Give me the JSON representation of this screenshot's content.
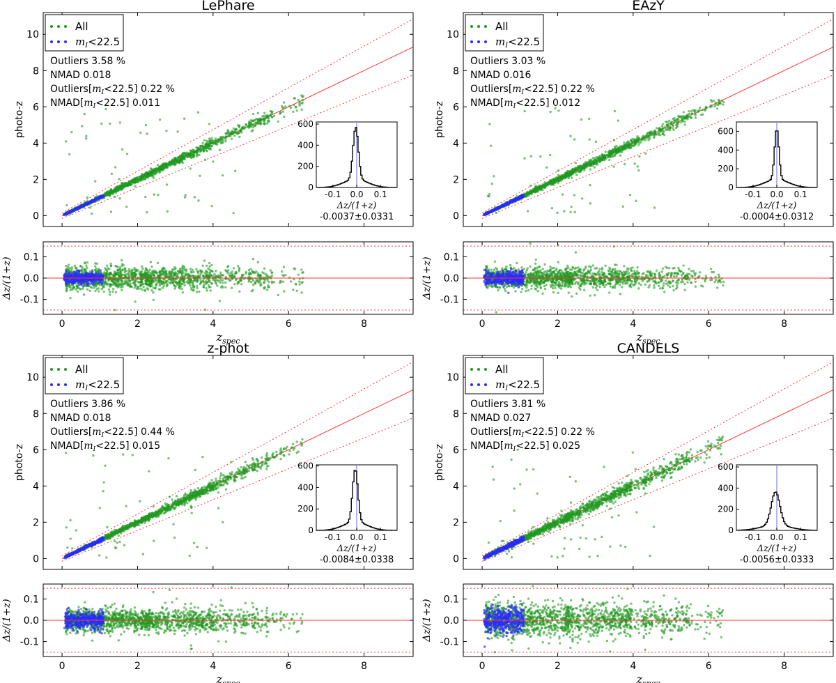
{
  "colors": {
    "all": "#1f9a1f",
    "bright": "#2b2bff",
    "line": "#ff3030",
    "hist": "#000000",
    "zero_line": "#9a9af0"
  },
  "common": {
    "legend_all": "All",
    "legend_bright_prefix": "m",
    "legend_bright_sub": "I",
    "legend_bright_suffix": "<22.5",
    "ylabel_main": "photo-z",
    "ylabel_resid": "Δz/(1+z)",
    "xlabel_main": "z",
    "xlabel_sub": "spec",
    "hist_xlabel": "Δz/(1+z)",
    "stat_outliers_label": "Outliers",
    "stat_nmad_label": "NMAD",
    "stat_mI_prefix": "m",
    "stat_mI_sub": "I",
    "stat_mI_cut": "<22.5",
    "percent": "%"
  },
  "chart_data": [
    {
      "type": "scatter",
      "title": "LePhare",
      "xlim": [
        -0.5,
        9.3
      ],
      "ylim": [
        -0.6,
        11.2
      ],
      "xticks": [
        "0",
        "2",
        "4",
        "6",
        "8"
      ],
      "yticks": [
        "0",
        "2",
        "4",
        "6",
        "8",
        "10"
      ],
      "resid_ylim": [
        -0.17,
        0.17
      ],
      "resid_yticks": [
        "0.1",
        "0.0",
        "-0.1"
      ],
      "outlier_threshold": 0.15,
      "stats": {
        "outliers": "3.58",
        "nmad": "0.018",
        "outliers_bright": "0.22",
        "nmad_bright": "0.011"
      },
      "hist": {
        "xlim": [
          -0.17,
          0.17
        ],
        "ylim": [
          0,
          620
        ],
        "yticks": [
          "0",
          "200",
          "400",
          "600"
        ],
        "xticks": [
          "-0.1",
          "0.0",
          "0.1"
        ],
        "peak": 580,
        "center": -0.004,
        "width": 0.011,
        "tail": 0.05,
        "summary": "-0.0037±0.0331"
      }
    },
    {
      "type": "scatter",
      "title": "EAzY",
      "xlim": [
        -0.5,
        9.3
      ],
      "ylim": [
        -0.6,
        11.2
      ],
      "xticks": [
        "0",
        "2",
        "4",
        "6",
        "8"
      ],
      "yticks": [
        "0",
        "2",
        "4",
        "6",
        "8",
        "10"
      ],
      "resid_ylim": [
        -0.17,
        0.17
      ],
      "resid_yticks": [
        "0.1",
        "0.0",
        "-0.1"
      ],
      "outlier_threshold": 0.15,
      "stats": {
        "outliers": "3.03",
        "nmad": "0.016",
        "outliers_bright": "0.22",
        "nmad_bright": "0.012"
      },
      "hist": {
        "xlim": [
          -0.17,
          0.17
        ],
        "ylim": [
          0,
          700
        ],
        "yticks": [
          "0",
          "200",
          "400",
          "600"
        ],
        "xticks": [
          "-0.1",
          "0.0",
          "0.1"
        ],
        "peak": 640,
        "center": 0.0,
        "width": 0.009,
        "tail": 0.05,
        "summary": "-0.0004±0.0312"
      }
    },
    {
      "type": "scatter",
      "title": "z-phot",
      "xlim": [
        -0.5,
        9.3
      ],
      "ylim": [
        -0.6,
        11.2
      ],
      "xticks": [
        "0",
        "2",
        "4",
        "6",
        "8"
      ],
      "yticks": [
        "0",
        "2",
        "4",
        "6",
        "8",
        "10"
      ],
      "resid_ylim": [
        -0.17,
        0.17
      ],
      "resid_yticks": [
        "0.1",
        "0.0",
        "-0.1"
      ],
      "outlier_threshold": 0.15,
      "stats": {
        "outliers": "3.86",
        "nmad": "0.018",
        "outliers_bright": "0.44",
        "nmad_bright": "0.015"
      },
      "hist": {
        "xlim": [
          -0.17,
          0.17
        ],
        "ylim": [
          0,
          610
        ],
        "yticks": [
          "0",
          "200",
          "400",
          "600"
        ],
        "xticks": [
          "-0.1",
          "0.0",
          "0.1"
        ],
        "peak": 580,
        "center": -0.006,
        "width": 0.011,
        "tail": 0.05,
        "summary": "-0.0084±0.0338"
      }
    },
    {
      "type": "scatter",
      "title": "CANDELS",
      "xlim": [
        -0.5,
        9.3
      ],
      "ylim": [
        -0.6,
        11.2
      ],
      "xticks": [
        "0",
        "2",
        "4",
        "6",
        "8"
      ],
      "yticks": [
        "0",
        "2",
        "4",
        "6",
        "8",
        "10"
      ],
      "resid_ylim": [
        -0.17,
        0.17
      ],
      "resid_yticks": [
        "0.1",
        "0.0",
        "-0.1"
      ],
      "outlier_threshold": 0.15,
      "stats": {
        "outliers": "3.81",
        "nmad": "0.027",
        "outliers_bright": "0.22",
        "nmad_bright": "0.025"
      },
      "hist": {
        "xlim": [
          -0.17,
          0.17
        ],
        "ylim": [
          0,
          620
        ],
        "yticks": [
          "0",
          "200",
          "400",
          "600"
        ],
        "xticks": [
          "-0.1",
          "0.0",
          "0.1"
        ],
        "peak": 370,
        "center": -0.005,
        "width": 0.018,
        "tail": 0.06,
        "summary": "-0.0056±0.0333"
      }
    }
  ]
}
